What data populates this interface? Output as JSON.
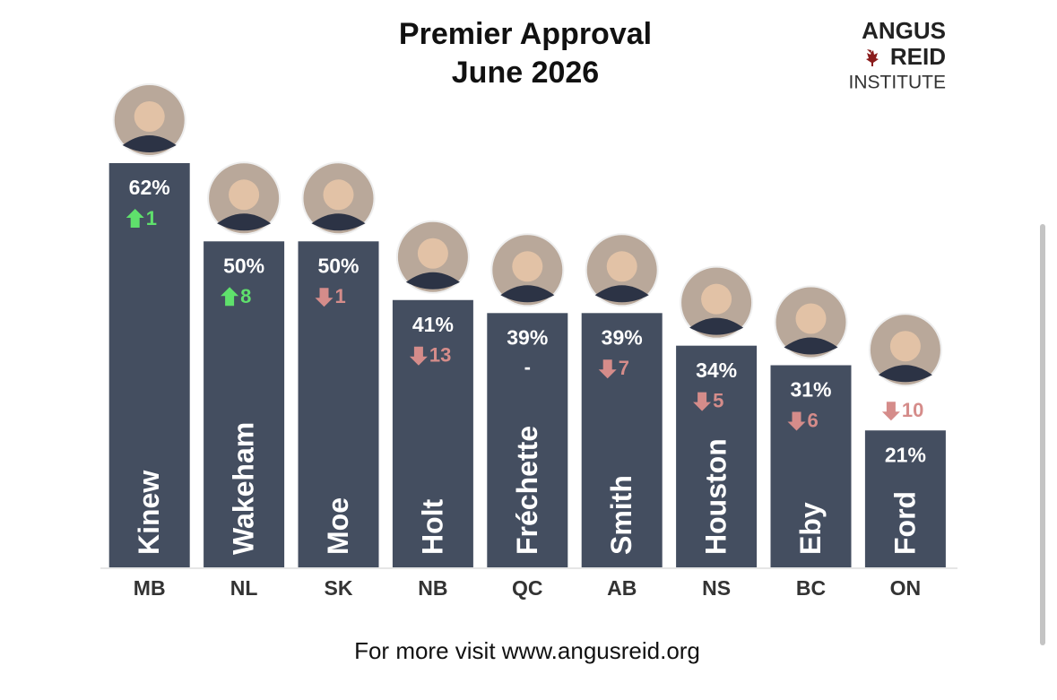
{
  "chart_data": {
    "type": "bar",
    "title": "Premier Approval",
    "subtitle": "June 2026",
    "logo": [
      "ANGUS",
      "REID",
      "INSTITUTE"
    ],
    "categories": [
      "MB",
      "NL",
      "SK",
      "NB",
      "QC",
      "AB",
      "NS",
      "BC",
      "ON"
    ],
    "names": [
      "Kinew",
      "Wakeham",
      "Moe",
      "Holt",
      "Fréchette",
      "Smith",
      "Houston",
      "Eby",
      "Ford"
    ],
    "values": [
      62,
      50,
      50,
      41,
      39,
      39,
      34,
      31,
      21
    ],
    "value_labels": [
      "62%",
      "50%",
      "50%",
      "41%",
      "39%",
      "39%",
      "34%",
      "31%",
      "21%"
    ],
    "changes": [
      1,
      8,
      -1,
      -13,
      null,
      -7,
      -5,
      -6,
      -10
    ],
    "change_labels": [
      "1",
      "8",
      "1",
      "13",
      "-",
      "7",
      "5",
      "6",
      "10"
    ],
    "color": "#444e60",
    "up_color": "#5fe06c",
    "down_color": "#d58c8a",
    "footer": "For more visit www.angusreid.org"
  }
}
